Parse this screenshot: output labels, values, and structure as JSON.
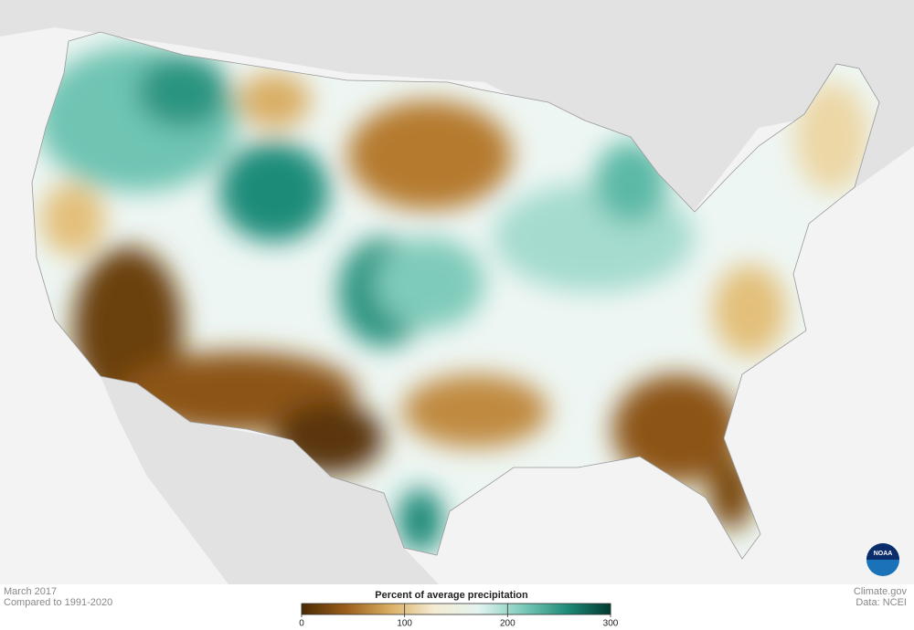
{
  "footer": {
    "date": "March 2017",
    "baseline": "Compared to 1991-2020",
    "source_site": "Climate.gov",
    "source_data": "Data: NCEI"
  },
  "logo": {
    "label": "NOAA"
  },
  "legend": {
    "title": "Percent of average precipitation",
    "range": [
      0,
      300
    ],
    "ticks": [
      0,
      100,
      200,
      300
    ],
    "colors": [
      "#4a2904",
      "#9a5e1a",
      "#d9ae63",
      "#f5ecd3",
      "#e4f4f0",
      "#7fcbba",
      "#1f8c79",
      "#00392f"
    ]
  }
}
